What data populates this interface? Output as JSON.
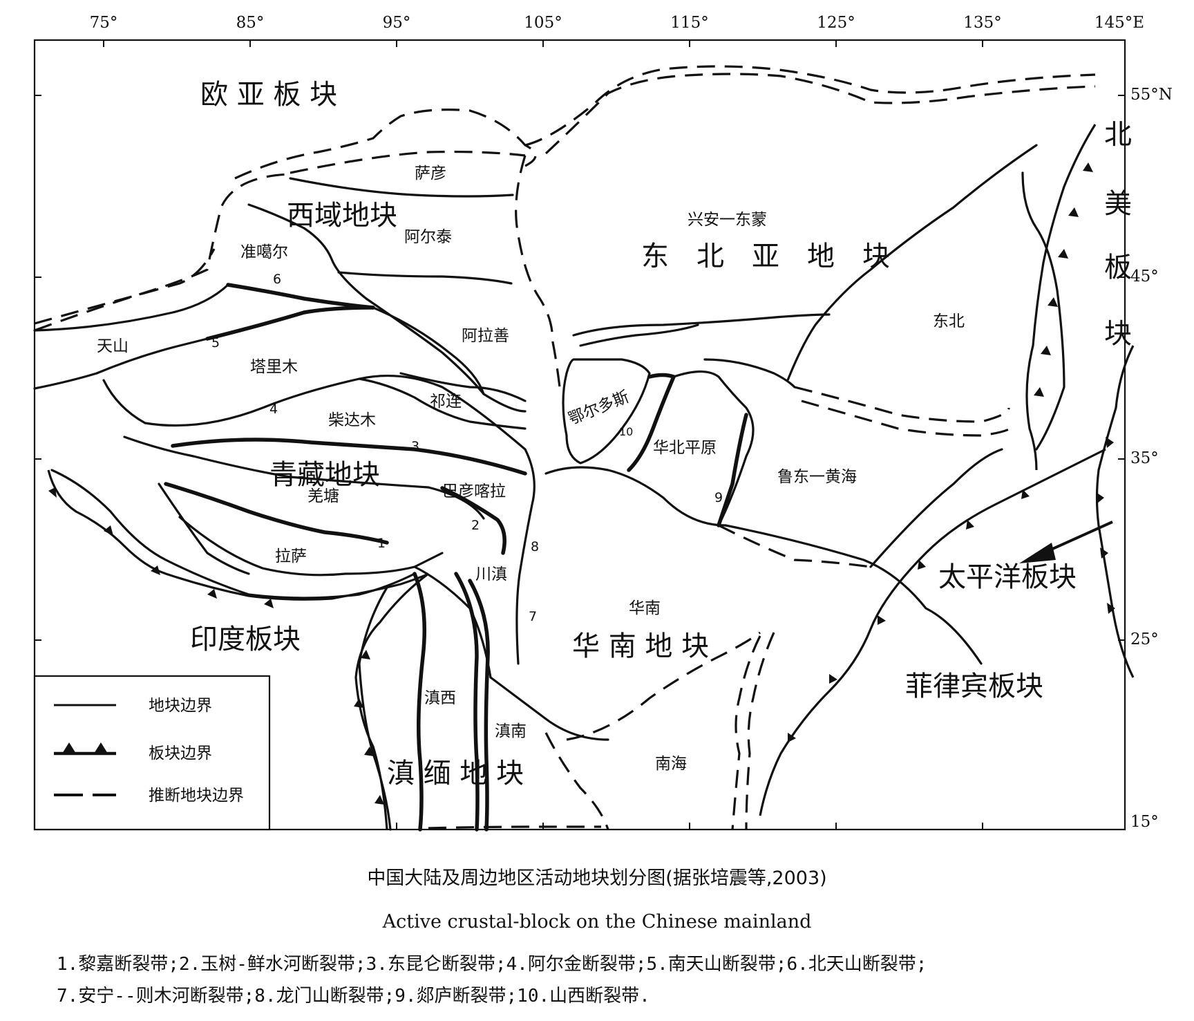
{
  "axes": {
    "lon_labels": [
      "75°",
      "85°",
      "95°",
      "105°",
      "115°",
      "125°",
      "135°",
      "145°E"
    ],
    "lat_labels": [
      "55°N",
      "45°",
      "35°",
      "25°",
      "15°"
    ]
  },
  "plates": {
    "eurasian": "欧 亚 板 块",
    "north_american": [
      "北",
      "美",
      "板",
      "块"
    ],
    "indian": "印度板块",
    "pacific": "太平洋板块",
    "philippine": "菲律宾板块"
  },
  "major_blocks": {
    "xiyu": "西域地块",
    "northeast_asia": "东　北　亚　地　块",
    "qingzang": "青藏地块",
    "south_china": "华 南 地 块",
    "diannmian": "滇 缅 地 块"
  },
  "sub_blocks": {
    "sayan": "萨彦",
    "altai": "阿尔泰",
    "xingan": "兴安一东蒙",
    "junggar": "准噶尔",
    "tianshan": "天山",
    "tarim": "塔里木",
    "alxa": "阿拉善",
    "qilian": "祁连",
    "qaidam": "柴达木",
    "ordos": "鄂尔多斯",
    "north_china_plain": "华北平原",
    "dongbei": "东北",
    "ludong_yellow_sea": "鲁东一黄海",
    "bayankala": "巴彦喀拉",
    "qiangtang": "羌塘",
    "lhasa": "拉萨",
    "chuandian": "川滇",
    "huanan": "华南",
    "dianxi": "滇西",
    "diannan": "滇南",
    "south_china_sea": "南海"
  },
  "fault_numbers": [
    "1",
    "2",
    "3",
    "4",
    "5",
    "6",
    "7",
    "8",
    "9",
    "10"
  ],
  "legend": {
    "block_boundary": "地块边界",
    "plate_boundary": "板块边界",
    "inferred_boundary": "推断地块边界"
  },
  "caption": {
    "chinese": "中国大陆及周边地区活动地块划分图(据张培震等,2003)",
    "english": "Active crustal-block on the Chinese mainland"
  },
  "notes": {
    "line1": "1.黎嘉断裂带;2.玉树-鲜水河断裂带;3.东昆仑断裂带;4.阿尔金断裂带;5.南天山断裂带;6.北天山断裂带;",
    "line2": "7.安宁--则木河断裂带;8.龙门山断裂带;9.郯庐断裂带;10.山西断裂带."
  }
}
